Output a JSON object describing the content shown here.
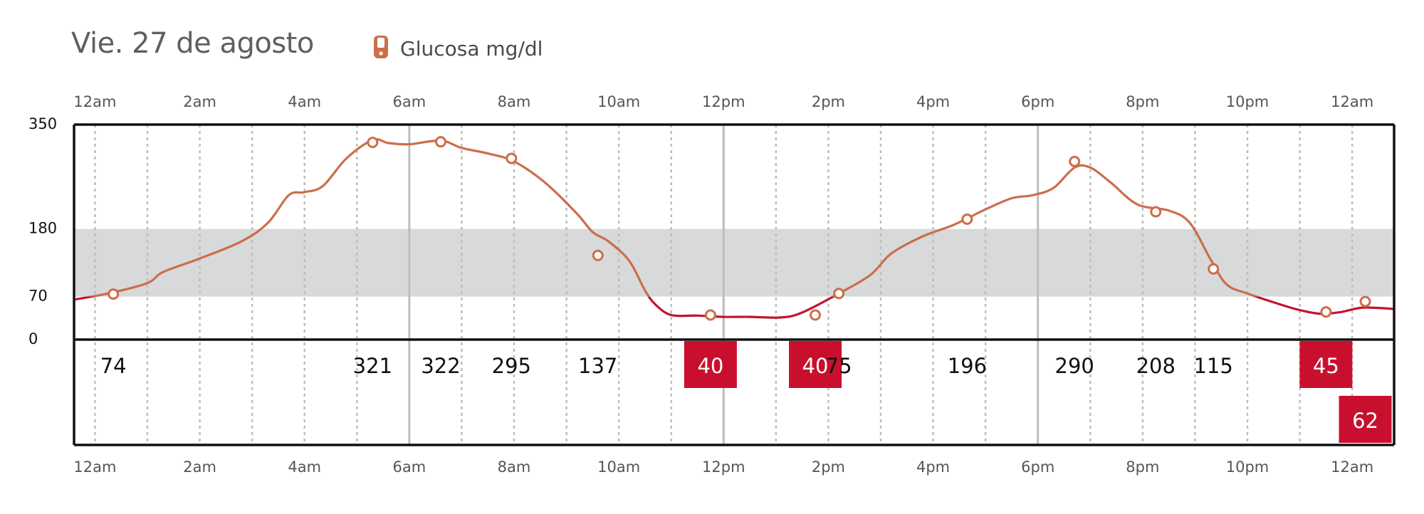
{
  "header": {
    "date_title": "Vie. 27 de agosto",
    "legend_label": "Glucosa mg/dl",
    "legend_icon": "glucose-meter-icon"
  },
  "colors": {
    "line": "#cc6e4a",
    "line_low": "#c0162c",
    "target_band": "#d8d9da",
    "low_box": "#c8102e",
    "grid": "#bdbdbd",
    "axis": "#111111"
  },
  "chart_data": {
    "type": "line",
    "title": "Vie. 27 de agosto",
    "ylabel": "",
    "xlabel": "",
    "legend": [
      "Glucosa mg/dl"
    ],
    "ylim": [
      0,
      350
    ],
    "yticks": [
      0,
      70,
      180,
      350
    ],
    "target_range": [
      70,
      180
    ],
    "xlim_hours": [
      -0.4,
      24.8
    ],
    "xticks": [
      {
        "label": "12am",
        "hour": 0
      },
      {
        "label": "2am",
        "hour": 2
      },
      {
        "label": "4am",
        "hour": 4
      },
      {
        "label": "6am",
        "hour": 6
      },
      {
        "label": "8am",
        "hour": 8
      },
      {
        "label": "10am",
        "hour": 10
      },
      {
        "label": "12pm",
        "hour": 12
      },
      {
        "label": "2pm",
        "hour": 14
      },
      {
        "label": "4pm",
        "hour": 16
      },
      {
        "label": "6pm",
        "hour": 18
      },
      {
        "label": "8pm",
        "hour": 20
      },
      {
        "label": "10pm",
        "hour": 22
      },
      {
        "label": "12am",
        "hour": 24
      }
    ],
    "series": [
      {
        "name": "Glucosa mg/dl",
        "curve": [
          [
            -0.4,
            65
          ],
          [
            0.3,
            76
          ],
          [
            1.0,
            92
          ],
          [
            1.3,
            110
          ],
          [
            2.0,
            132
          ],
          [
            2.8,
            160
          ],
          [
            3.3,
            190
          ],
          [
            3.7,
            235
          ],
          [
            4.0,
            240
          ],
          [
            4.35,
            250
          ],
          [
            4.8,
            295
          ],
          [
            5.3,
            325
          ],
          [
            5.6,
            320
          ],
          [
            6.0,
            318
          ],
          [
            6.6,
            324
          ],
          [
            7.0,
            312
          ],
          [
            7.5,
            303
          ],
          [
            8.0,
            290
          ],
          [
            8.6,
            255
          ],
          [
            9.2,
            205
          ],
          [
            9.5,
            175
          ],
          [
            9.8,
            160
          ],
          [
            10.2,
            128
          ],
          [
            10.5,
            80
          ],
          [
            10.7,
            57
          ],
          [
            11.0,
            40
          ],
          [
            11.5,
            39
          ],
          [
            12.0,
            37
          ],
          [
            12.5,
            37
          ],
          [
            13.1,
            36
          ],
          [
            13.5,
            44
          ],
          [
            14.2,
            75
          ],
          [
            14.8,
            105
          ],
          [
            15.2,
            140
          ],
          [
            15.8,
            168
          ],
          [
            16.4,
            187
          ],
          [
            17.0,
            212
          ],
          [
            17.5,
            230
          ],
          [
            17.9,
            235
          ],
          [
            18.3,
            247
          ],
          [
            18.7,
            280
          ],
          [
            19.0,
            280
          ],
          [
            19.4,
            255
          ],
          [
            19.9,
            220
          ],
          [
            20.5,
            210
          ],
          [
            20.9,
            190
          ],
          [
            21.3,
            130
          ],
          [
            21.6,
            90
          ],
          [
            22.0,
            75
          ],
          [
            22.6,
            58
          ],
          [
            23.0,
            48
          ],
          [
            23.4,
            42
          ],
          [
            23.8,
            45
          ],
          [
            24.2,
            52
          ],
          [
            24.8,
            50
          ]
        ],
        "readings": [
          {
            "hour": 0.35,
            "value": 74,
            "label": "74",
            "low": false,
            "row": 0
          },
          {
            "hour": 5.3,
            "value": 321,
            "label": "321",
            "low": false,
            "row": 0
          },
          {
            "hour": 6.6,
            "value": 322,
            "label": "322",
            "low": false,
            "row": 0
          },
          {
            "hour": 7.95,
            "value": 295,
            "label": "295",
            "low": false,
            "row": 0
          },
          {
            "hour": 9.6,
            "value": 137,
            "label": "137",
            "low": false,
            "row": 0
          },
          {
            "hour": 11.75,
            "value": 40,
            "label": "40",
            "low": true,
            "row": 0
          },
          {
            "hour": 13.75,
            "value": 40,
            "label": "40",
            "low": true,
            "row": 0
          },
          {
            "hour": 14.2,
            "value": 75,
            "label": "75",
            "low": false,
            "row": 0
          },
          {
            "hour": 16.65,
            "value": 196,
            "label": "196",
            "low": false,
            "row": 0
          },
          {
            "hour": 18.7,
            "value": 290,
            "label": "290",
            "low": false,
            "row": 0
          },
          {
            "hour": 20.25,
            "value": 208,
            "label": "208",
            "low": false,
            "row": 0
          },
          {
            "hour": 21.35,
            "value": 115,
            "label": "115",
            "low": false,
            "row": 0
          },
          {
            "hour": 23.5,
            "value": 45,
            "label": "45",
            "low": true,
            "row": 0
          },
          {
            "hour": 24.25,
            "value": 62,
            "label": "62",
            "low": true,
            "row": 1
          }
        ]
      }
    ]
  }
}
